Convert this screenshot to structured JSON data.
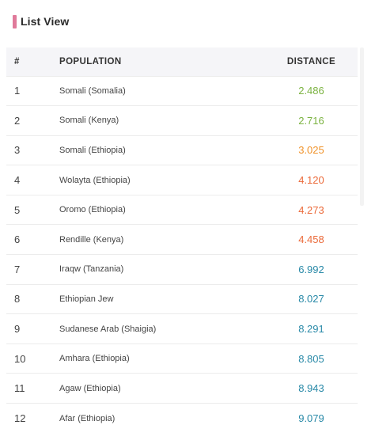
{
  "title": "List View",
  "colors": {
    "accent_bar": "#e07a9a",
    "green": "#7cb342",
    "orange": "#f0932b",
    "red_orange": "#eb6a3a",
    "teal": "#2a8aa8"
  },
  "table": {
    "headers": {
      "index": "#",
      "population": "POPULATION",
      "distance": "DISTANCE"
    },
    "rows": [
      {
        "index": "1",
        "population": "Somali (Somalia)",
        "distance": "2.486",
        "color": "#7cb342"
      },
      {
        "index": "2",
        "population": "Somali (Kenya)",
        "distance": "2.716",
        "color": "#7cb342"
      },
      {
        "index": "3",
        "population": "Somali (Ethiopia)",
        "distance": "3.025",
        "color": "#f0932b"
      },
      {
        "index": "4",
        "population": "Wolayta (Ethiopia)",
        "distance": "4.120",
        "color": "#eb6a3a"
      },
      {
        "index": "5",
        "population": "Oromo (Ethiopia)",
        "distance": "4.273",
        "color": "#eb6a3a"
      },
      {
        "index": "6",
        "population": "Rendille (Kenya)",
        "distance": "4.458",
        "color": "#eb6a3a"
      },
      {
        "index": "7",
        "population": "Iraqw (Tanzania)",
        "distance": "6.992",
        "color": "#2a8aa8"
      },
      {
        "index": "8",
        "population": "Ethiopian Jew",
        "distance": "8.027",
        "color": "#2a8aa8"
      },
      {
        "index": "9",
        "population": "Sudanese Arab (Shaigia)",
        "distance": "8.291",
        "color": "#2a8aa8"
      },
      {
        "index": "10",
        "population": "Amhara (Ethiopia)",
        "distance": "8.805",
        "color": "#2a8aa8"
      },
      {
        "index": "11",
        "population": "Agaw (Ethiopia)",
        "distance": "8.943",
        "color": "#2a8aa8"
      },
      {
        "index": "12",
        "population": "Afar (Ethiopia)",
        "distance": "9.079",
        "color": "#2a8aa8"
      }
    ]
  }
}
